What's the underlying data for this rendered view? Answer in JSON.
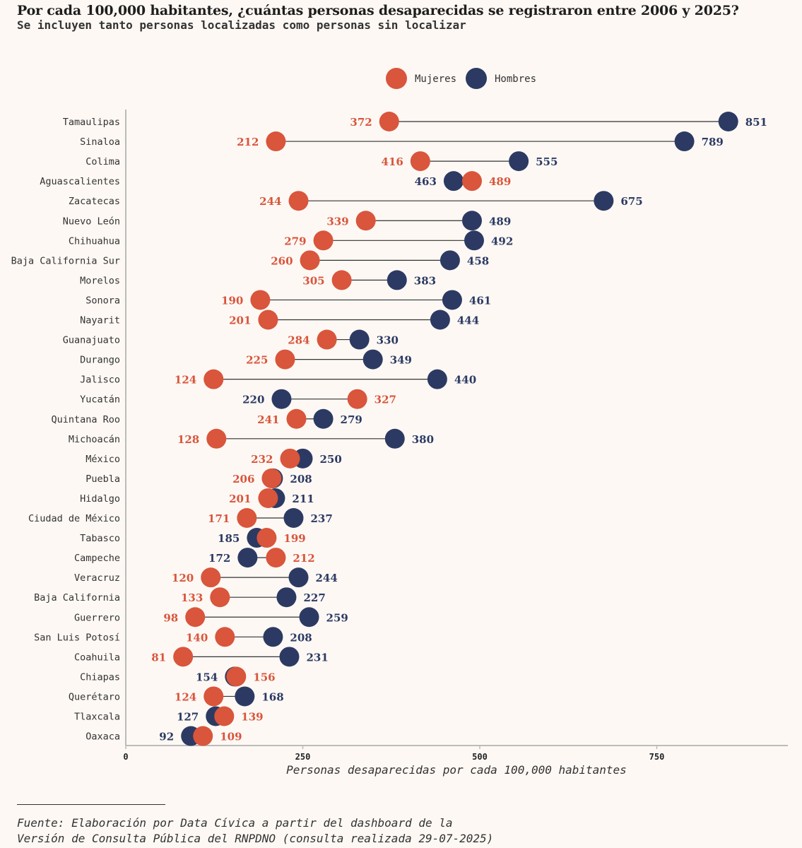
{
  "title": "Por cada 100,000 habitantes, ¿cuántas personas desaparecidas se registraron entre 2006 y 2025?",
  "subtitle": "Se incluyen tanto personas localizadas como personas sin localizar",
  "source_lines": [
    "Fuente: Elaboración por Data Cívica a partir del dashboard de la",
    "Versión de Consulta Pública del RNPDNO (consulta realizada 29-07-2025)"
  ],
  "colors": {
    "mujeres": "#d9553b",
    "hombres": "#2c3a63",
    "line": "#333333",
    "axis": "#bbbbbb",
    "text": "#333333"
  },
  "chart_data": {
    "type": "dumbbell",
    "xlabel": "Personas desaparecidas por cada 100,000 habitantes",
    "ylabel": "",
    "xlim": [
      0,
      935
    ],
    "xticks": [
      0,
      250,
      500,
      750
    ],
    "grid": false,
    "legend_position": "top-center",
    "series": [
      {
        "name": "Mujeres",
        "color": "#d9553b"
      },
      {
        "name": "Hombres",
        "color": "#2c3a63"
      }
    ],
    "categories": [
      "Tamaulipas",
      "Sinaloa",
      "Colima",
      "Aguascalientes",
      "Zacatecas",
      "Nuevo León",
      "Chihuahua",
      "Baja California Sur",
      "Morelos",
      "Sonora",
      "Nayarit",
      "Guanajuato",
      "Durango",
      "Jalisco",
      "Yucatán",
      "Quintana Roo",
      "Michoacán",
      "México",
      "Puebla",
      "Hidalgo",
      "Ciudad de México",
      "Tabasco",
      "Campeche",
      "Veracruz",
      "Baja California",
      "Guerrero",
      "San Luis Potosí",
      "Coahuila",
      "Chiapas",
      "Querétaro",
      "Tlaxcala",
      "Oaxaca"
    ],
    "mujeres": [
      372,
      212,
      416,
      489,
      244,
      339,
      279,
      260,
      305,
      190,
      201,
      284,
      225,
      124,
      327,
      241,
      128,
      232,
      206,
      201,
      171,
      199,
      212,
      120,
      133,
      98,
      140,
      81,
      156,
      124,
      139,
      109
    ],
    "hombres": [
      851,
      789,
      555,
      463,
      675,
      489,
      492,
      458,
      383,
      461,
      444,
      330,
      349,
      440,
      220,
      279,
      380,
      250,
      208,
      211,
      237,
      185,
      172,
      244,
      227,
      259,
      208,
      231,
      154,
      168,
      127,
      92
    ]
  }
}
